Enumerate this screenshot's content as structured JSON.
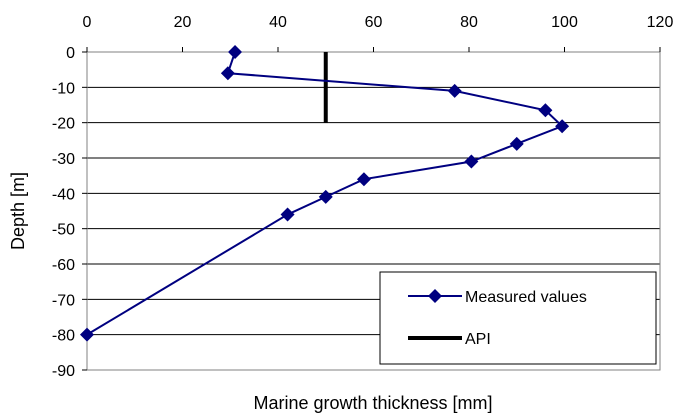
{
  "chart_data": {
    "type": "line",
    "xlabel": "Marine growth thickness [mm]",
    "ylabel": "Depth [m]",
    "xlim": [
      0,
      120
    ],
    "ylim": [
      -90,
      0
    ],
    "x_ticks": [
      "0",
      "20",
      "40",
      "60",
      "80",
      "100",
      "120"
    ],
    "y_ticks": [
      "0",
      "-10",
      "-20",
      "-30",
      "-40",
      "-50",
      "-60",
      "-70",
      "-80",
      "-90"
    ],
    "x_axis_position": "top",
    "grid": "horizontal",
    "legend_position": "bottom-right",
    "series": [
      {
        "name": "Measured values",
        "color": "#000080",
        "marker": "diamond",
        "points": [
          {
            "x": 31,
            "y": 0
          },
          {
            "x": 29.5,
            "y": -6
          },
          {
            "x": 77,
            "y": -11
          },
          {
            "x": 96,
            "y": -16.5
          },
          {
            "x": 99.5,
            "y": -21
          },
          {
            "x": 90,
            "y": -26
          },
          {
            "x": 80.5,
            "y": -31
          },
          {
            "x": 58,
            "y": -36
          },
          {
            "x": 50,
            "y": -41
          },
          {
            "x": 42,
            "y": -46
          },
          {
            "x": 0,
            "y": -80
          }
        ]
      },
      {
        "name": "API",
        "color": "#000000",
        "marker": "none",
        "points": [
          {
            "x": 50,
            "y": 0
          },
          {
            "x": 50,
            "y": -20
          }
        ]
      }
    ]
  }
}
